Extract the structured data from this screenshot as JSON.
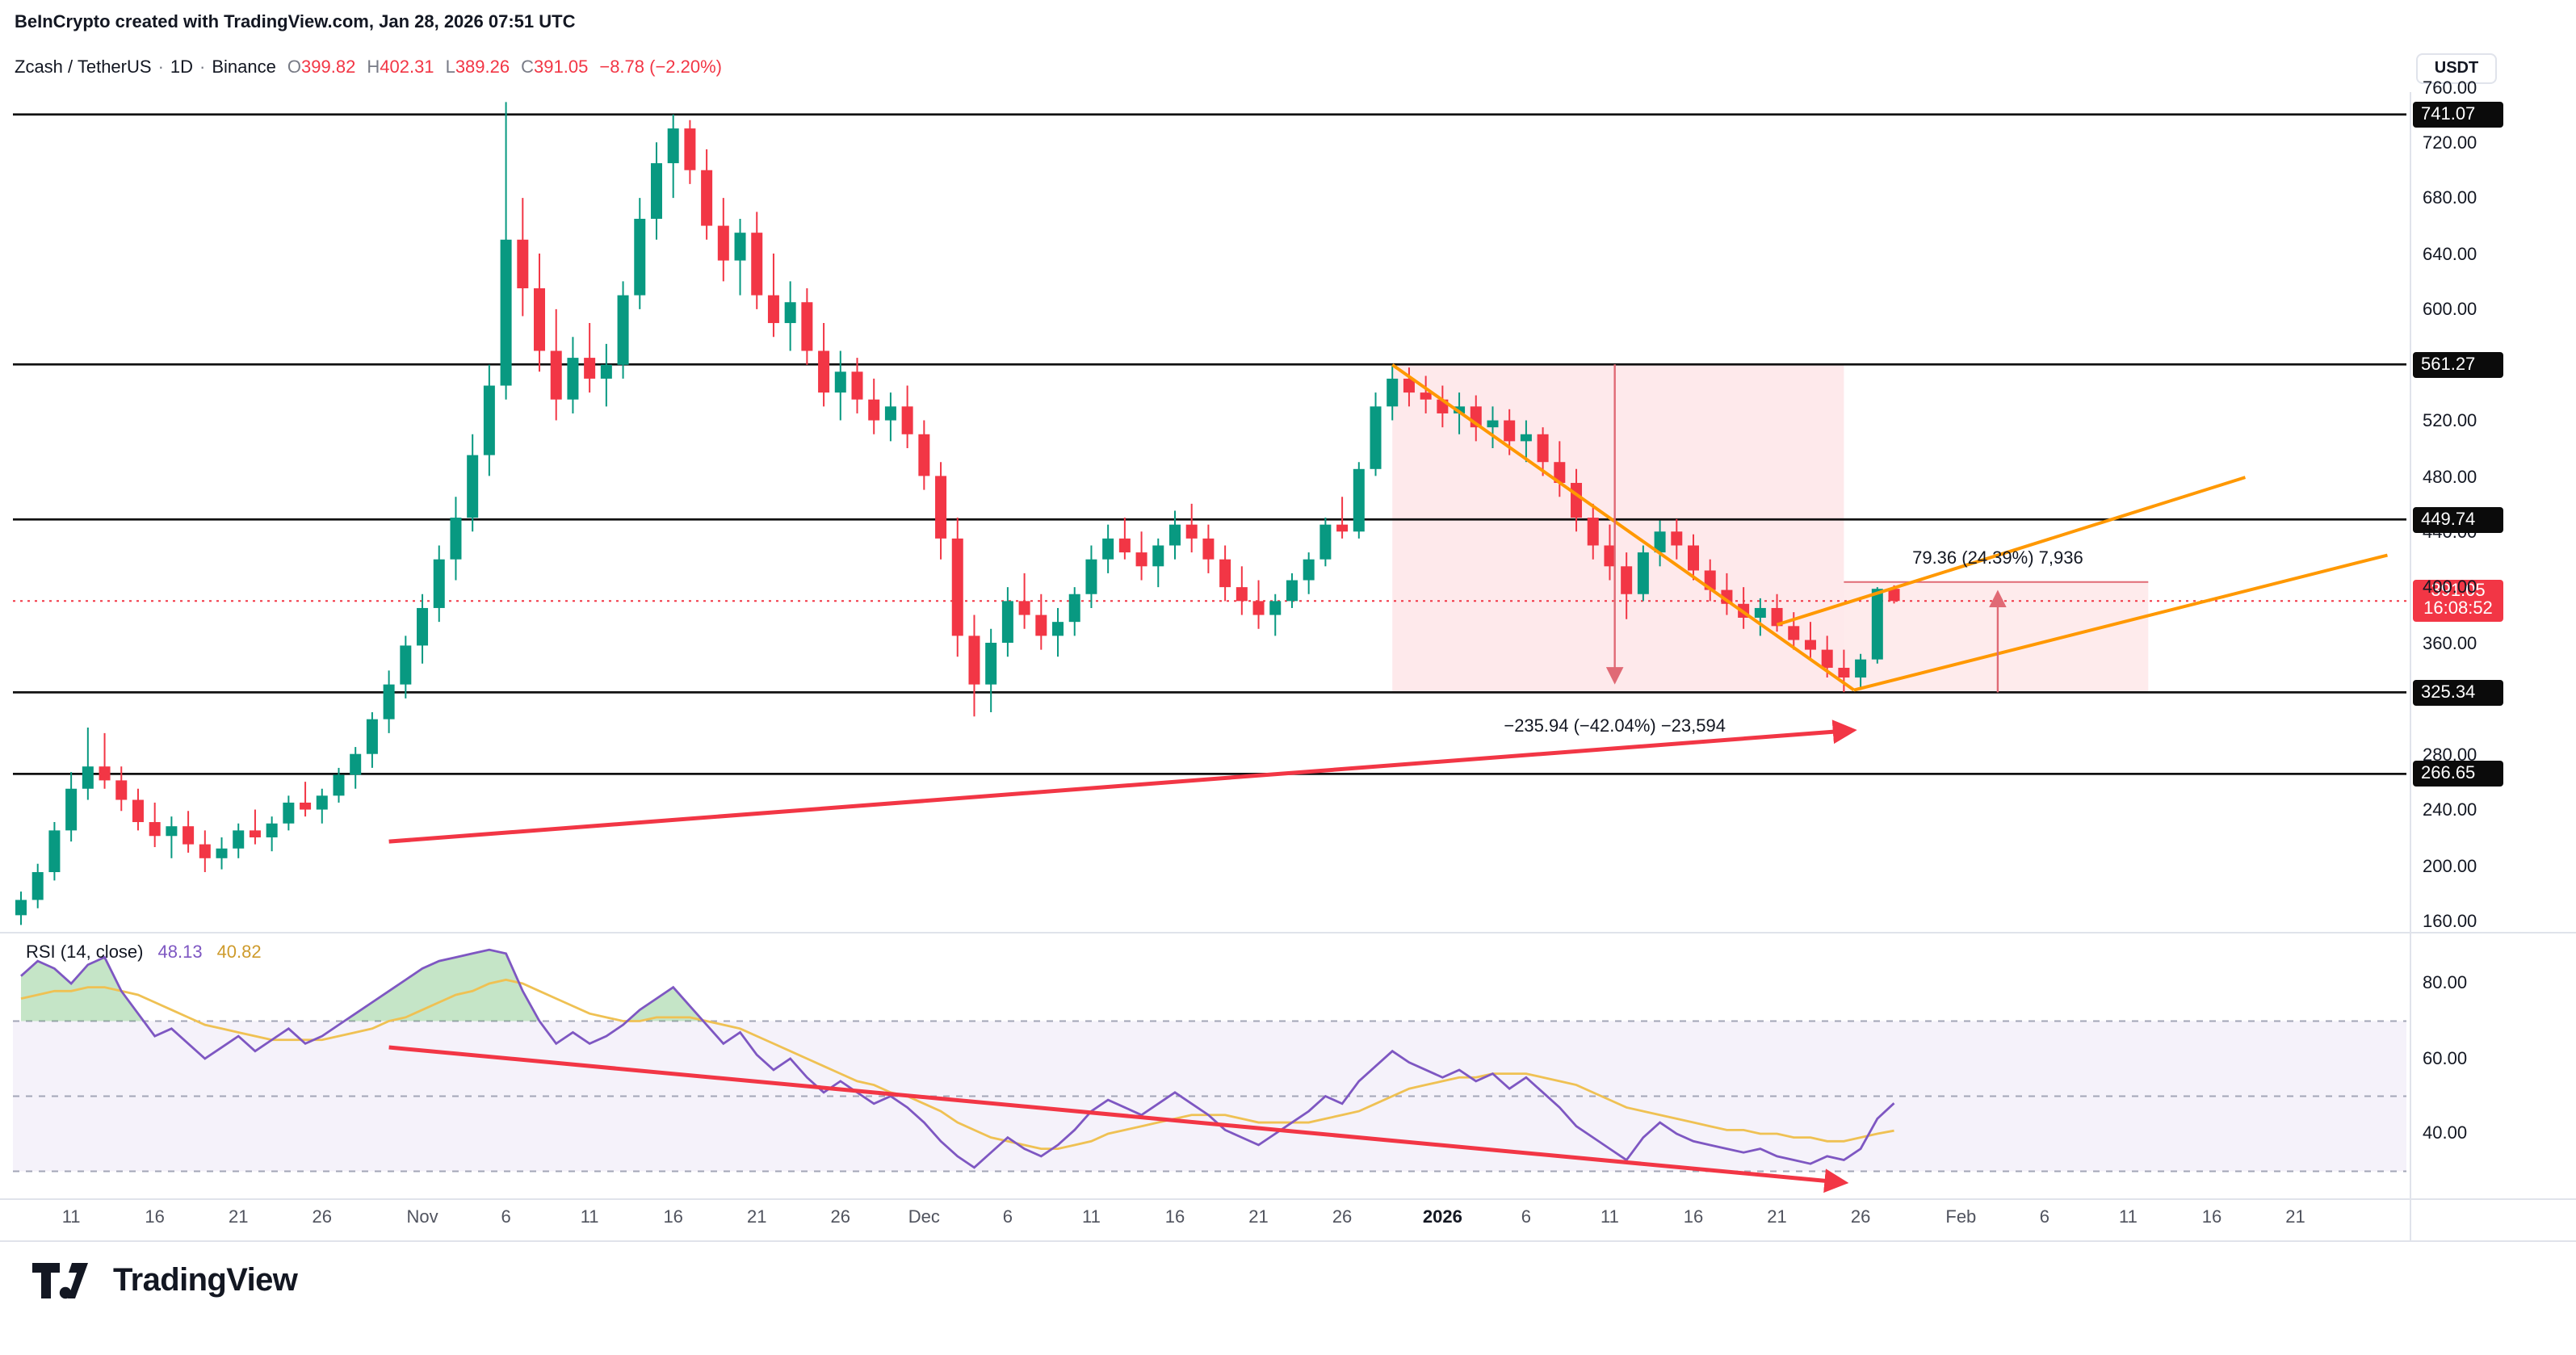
{
  "header": {
    "attribution": "BeInCrypto created with TradingView.com, Jan 28, 2026 07:51 UTC",
    "symbol": "Zcash / TetherUS",
    "dot": "·",
    "interval": "1D",
    "exchange": "Binance",
    "ohlc": {
      "o_label": "O",
      "o": "399.82",
      "h_label": "H",
      "h": "402.31",
      "l_label": "L",
      "l": "389.26",
      "c_label": "C",
      "c": "391.05",
      "change": "−8.78 (−2.20%)"
    },
    "currency": "USDT"
  },
  "price_axis": {
    "ticks": [
      {
        "label": "760.00",
        "p": 760
      },
      {
        "label": "720.00",
        "p": 720
      },
      {
        "label": "680.00",
        "p": 680
      },
      {
        "label": "640.00",
        "p": 640
      },
      {
        "label": "600.00",
        "p": 600
      },
      {
        "label": "520.00",
        "p": 520
      },
      {
        "label": "480.00",
        "p": 480
      },
      {
        "label": "440.00",
        "p": 440
      },
      {
        "label": "400.00",
        "p": 400
      },
      {
        "label": "360.00",
        "p": 360
      },
      {
        "label": "280.00",
        "p": 280
      },
      {
        "label": "240.00",
        "p": 240
      },
      {
        "label": "200.00",
        "p": 200
      },
      {
        "label": "160.00",
        "p": 160
      }
    ],
    "level_badges": [
      {
        "label": "741.07",
        "p": 741.07
      },
      {
        "label": "561.27",
        "p": 561.27
      },
      {
        "label": "449.74",
        "p": 449.74
      },
      {
        "label": "325.34",
        "p": 325.34
      },
      {
        "label": "266.65",
        "p": 266.65
      }
    ],
    "last": {
      "price": "391.05",
      "time": "16:08:52",
      "p": 391.05
    }
  },
  "rsi_axis": {
    "ticks": [
      {
        "label": "80.00",
        "v": 80
      },
      {
        "label": "60.00",
        "v": 60
      },
      {
        "label": "40.00",
        "v": 40
      }
    ]
  },
  "rsi_panel": {
    "label": "RSI (14, close)",
    "value": "48.13",
    "ma_value": "40.82"
  },
  "time_axis": [
    {
      "label": "11",
      "d": 3
    },
    {
      "label": "16",
      "d": 8
    },
    {
      "label": "21",
      "d": 13
    },
    {
      "label": "26",
      "d": 18
    },
    {
      "label": "Nov",
      "d": 24
    },
    {
      "label": "6",
      "d": 29
    },
    {
      "label": "11",
      "d": 34
    },
    {
      "label": "16",
      "d": 39
    },
    {
      "label": "21",
      "d": 44
    },
    {
      "label": "26",
      "d": 49
    },
    {
      "label": "Dec",
      "d": 54
    },
    {
      "label": "6",
      "d": 59
    },
    {
      "label": "11",
      "d": 64
    },
    {
      "label": "16",
      "d": 69
    },
    {
      "label": "21",
      "d": 74
    },
    {
      "label": "26",
      "d": 79
    },
    {
      "label": "2026",
      "d": 85,
      "bold": true
    },
    {
      "label": "6",
      "d": 90
    },
    {
      "label": "11",
      "d": 95
    },
    {
      "label": "16",
      "d": 100
    },
    {
      "label": "21",
      "d": 105
    },
    {
      "label": "26",
      "d": 110
    },
    {
      "label": "Feb",
      "d": 116
    },
    {
      "label": "6",
      "d": 121
    },
    {
      "label": "11",
      "d": 126
    },
    {
      "label": "16",
      "d": 131
    },
    {
      "label": "21",
      "d": 136
    }
  ],
  "footer": {
    "brand": "TradingView"
  },
  "colors": {
    "up": "#089981",
    "down": "#F23645",
    "orange": "#FF9800",
    "level": "#111111",
    "rsi": "#7E57C2",
    "rsi_ma": "#EFC153",
    "measure": "#E06A75"
  },
  "chart_data": {
    "type": "candlestick",
    "title": "Zcash / TetherUS · 1D · Binance",
    "ylabel": "Price (USDT)",
    "ylim": [
      154,
      757
    ],
    "last_price": 391.05,
    "last_candle": {
      "open": 399.82,
      "high": 402.31,
      "low": 389.26,
      "close": 391.05,
      "change": "−8.78 (−2.20%)"
    },
    "levels": [
      741.07,
      561.27,
      449.74,
      325.34,
      266.65
    ],
    "candles": [
      [
        165,
        182,
        158,
        176
      ],
      [
        176,
        202,
        170,
        196
      ],
      [
        196,
        232,
        190,
        226
      ],
      [
        226,
        268,
        218,
        256
      ],
      [
        256,
        300,
        248,
        272
      ],
      [
        272,
        296,
        256,
        262
      ],
      [
        262,
        272,
        240,
        248
      ],
      [
        248,
        256,
        226,
        232
      ],
      [
        232,
        246,
        214,
        222
      ],
      [
        222,
        236,
        206,
        229
      ],
      [
        229,
        240,
        210,
        216
      ],
      [
        216,
        226,
        196,
        206
      ],
      [
        206,
        221,
        198,
        213
      ],
      [
        213,
        231,
        206,
        226
      ],
      [
        226,
        241,
        216,
        221
      ],
      [
        221,
        236,
        211,
        231
      ],
      [
        231,
        251,
        226,
        246
      ],
      [
        246,
        261,
        236,
        241
      ],
      [
        241,
        256,
        231,
        251
      ],
      [
        251,
        271,
        246,
        266
      ],
      [
        266,
        286,
        256,
        281
      ],
      [
        281,
        311,
        271,
        306
      ],
      [
        306,
        341,
        296,
        331
      ],
      [
        331,
        366,
        321,
        359
      ],
      [
        359,
        396,
        346,
        386
      ],
      [
        386,
        431,
        376,
        421
      ],
      [
        421,
        466,
        406,
        451
      ],
      [
        451,
        511,
        441,
        496
      ],
      [
        496,
        561,
        481,
        546
      ],
      [
        546,
        750,
        536,
        651
      ],
      [
        651,
        681,
        596,
        616
      ],
      [
        616,
        641,
        556,
        571
      ],
      [
        571,
        601,
        521,
        536
      ],
      [
        536,
        581,
        526,
        566
      ],
      [
        566,
        591,
        541,
        551
      ],
      [
        551,
        576,
        531,
        561
      ],
      [
        561,
        621,
        551,
        611
      ],
      [
        611,
        681,
        601,
        666
      ],
      [
        666,
        721,
        651,
        706
      ],
      [
        706,
        741,
        681,
        731
      ],
      [
        731,
        737,
        691,
        701
      ],
      [
        701,
        716,
        651,
        661
      ],
      [
        661,
        681,
        621,
        636
      ],
      [
        636,
        666,
        611,
        656
      ],
      [
        656,
        671,
        601,
        611
      ],
      [
        611,
        641,
        581,
        591
      ],
      [
        591,
        621,
        571,
        606
      ],
      [
        606,
        616,
        561,
        571
      ],
      [
        571,
        591,
        531,
        541
      ],
      [
        541,
        571,
        521,
        556
      ],
      [
        556,
        566,
        526,
        536
      ],
      [
        536,
        551,
        511,
        521
      ],
      [
        521,
        541,
        506,
        531
      ],
      [
        531,
        546,
        501,
        511
      ],
      [
        511,
        521,
        471,
        481
      ],
      [
        481,
        491,
        421,
        436
      ],
      [
        436,
        451,
        351,
        366
      ],
      [
        366,
        381,
        308,
        331
      ],
      [
        331,
        371,
        311,
        361
      ],
      [
        361,
        401,
        351,
        391
      ],
      [
        391,
        411,
        371,
        381
      ],
      [
        381,
        396,
        356,
        366
      ],
      [
        366,
        386,
        351,
        376
      ],
      [
        376,
        401,
        366,
        396
      ],
      [
        396,
        431,
        386,
        421
      ],
      [
        421,
        446,
        411,
        436
      ],
      [
        436,
        451,
        421,
        426
      ],
      [
        426,
        441,
        406,
        416
      ],
      [
        416,
        436,
        401,
        431
      ],
      [
        431,
        456,
        421,
        446
      ],
      [
        446,
        461,
        426,
        436
      ],
      [
        436,
        446,
        411,
        421
      ],
      [
        421,
        431,
        391,
        401
      ],
      [
        401,
        416,
        381,
        391
      ],
      [
        391,
        406,
        371,
        381
      ],
      [
        381,
        396,
        366,
        391
      ],
      [
        391,
        411,
        386,
        406
      ],
      [
        406,
        426,
        396,
        421
      ],
      [
        421,
        451,
        416,
        446
      ],
      [
        446,
        466,
        436,
        441
      ],
      [
        441,
        491,
        436,
        486
      ],
      [
        486,
        541,
        481,
        531
      ],
      [
        531,
        561,
        521,
        551
      ],
      [
        551,
        559,
        531,
        541
      ],
      [
        541,
        553,
        526,
        536
      ],
      [
        536,
        546,
        516,
        526
      ],
      [
        526,
        541,
        511,
        531
      ],
      [
        531,
        539,
        506,
        516
      ],
      [
        516,
        531,
        501,
        521
      ],
      [
        521,
        529,
        496,
        506
      ],
      [
        506,
        521,
        491,
        511
      ],
      [
        511,
        516,
        481,
        491
      ],
      [
        491,
        506,
        466,
        476
      ],
      [
        476,
        486,
        441,
        451
      ],
      [
        451,
        461,
        421,
        431
      ],
      [
        431,
        446,
        406,
        416
      ],
      [
        416,
        426,
        378,
        396
      ],
      [
        396,
        431,
        391,
        426
      ],
      [
        426,
        449,
        416,
        441
      ],
      [
        441,
        450,
        421,
        431
      ],
      [
        431,
        439,
        406,
        413
      ],
      [
        413,
        421,
        391,
        399
      ],
      [
        399,
        411,
        381,
        389
      ],
      [
        389,
        401,
        371,
        379
      ],
      [
        379,
        393,
        366,
        386
      ],
      [
        386,
        396,
        369,
        373
      ],
      [
        373,
        383,
        356,
        363
      ],
      [
        363,
        376,
        349,
        356
      ],
      [
        356,
        366,
        336,
        343
      ],
      [
        343,
        356,
        325.5,
        336
      ],
      [
        336,
        353,
        327,
        349
      ],
      [
        349,
        401,
        346,
        399.8
      ],
      [
        399.82,
        402.31,
        389.26,
        391.05
      ]
    ],
    "rsi": [
      82,
      86,
      84,
      80,
      85,
      87,
      78,
      72,
      66,
      68,
      64,
      60,
      63,
      66,
      62,
      65,
      68,
      64,
      66,
      69,
      72,
      75,
      78,
      81,
      84,
      86,
      87,
      88,
      89,
      88,
      78,
      70,
      64,
      67,
      64,
      66,
      69,
      73,
      76,
      79,
      74,
      69,
      64,
      67,
      61,
      57,
      60,
      55,
      51,
      54,
      51,
      48,
      50,
      47,
      43,
      38,
      34,
      31,
      35,
      39,
      36,
      34,
      37,
      41,
      46,
      49,
      47,
      45,
      48,
      51,
      48,
      45,
      41,
      39,
      37,
      40,
      43,
      46,
      50,
      48,
      54,
      58,
      62,
      59,
      57,
      55,
      57,
      54,
      56,
      52,
      55,
      51,
      47,
      42,
      39,
      36,
      33,
      39,
      43,
      40,
      38,
      37,
      36,
      35,
      36,
      34,
      33,
      32,
      34,
      33,
      36,
      44,
      48.13
    ],
    "rsi_ma": [
      76,
      77,
      78,
      78,
      79,
      79,
      78,
      77,
      75,
      73,
      71,
      69,
      68,
      67,
      66,
      65,
      65,
      65,
      65,
      66,
      67,
      68,
      70,
      71,
      73,
      75,
      77,
      78,
      80,
      81,
      80,
      78,
      76,
      74,
      72,
      71,
      70,
      70,
      71,
      71,
      71,
      70,
      69,
      68,
      66,
      64,
      62,
      60,
      58,
      56,
      54,
      53,
      51,
      50,
      48,
      46,
      43,
      41,
      39,
      38,
      37,
      36,
      36,
      37,
      38,
      40,
      41,
      42,
      43,
      44,
      45,
      45,
      45,
      44,
      43,
      43,
      43,
      43,
      44,
      45,
      46,
      48,
      50,
      52,
      53,
      54,
      55,
      55,
      56,
      56,
      56,
      55,
      54,
      53,
      51,
      49,
      47,
      46,
      45,
      44,
      43,
      42,
      41,
      41,
      40,
      40,
      39,
      39,
      38,
      38,
      39,
      40,
      40.82
    ],
    "rsi_guides": [
      70,
      50,
      30
    ],
    "boxes": [
      {
        "d1": 82,
        "d2": 109,
        "p_top": 561.27,
        "p_bot": 325.34,
        "fill": "rgba(242,54,69,0.11)"
      },
      {
        "d1": 109,
        "d2": 127.2,
        "p_top": 404.7,
        "p_bot": 325.34,
        "fill": "rgba(242,54,69,0.10)"
      }
    ],
    "trendlines": [
      {
        "d1": 82,
        "p1": 561,
        "d2": 109.6,
        "p2": 327
      },
      {
        "d1": 109.6,
        "p1": 327,
        "d2": 141.5,
        "p2": 424
      },
      {
        "d1": 105,
        "p1": 374,
        "d2": 133,
        "p2": 480
      }
    ],
    "trend_arrow": {
      "d1": 22,
      "p1": 218,
      "d2": 109.5,
      "p2": 298
    },
    "rsi_trend_arrow": {
      "d1": 22,
      "v1": 63,
      "d2": 109,
      "v2": 27
    },
    "measures": [
      {
        "label": "−235.94 (−42.04%) −23,594",
        "p_from": 561.27,
        "p_to": 325.34,
        "arrow_d": 95.3
      },
      {
        "label": "79.36 (24.39%) 7,936",
        "p_from": 325.34,
        "p_to": 404.7,
        "arrow_d": 118.2
      }
    ]
  }
}
